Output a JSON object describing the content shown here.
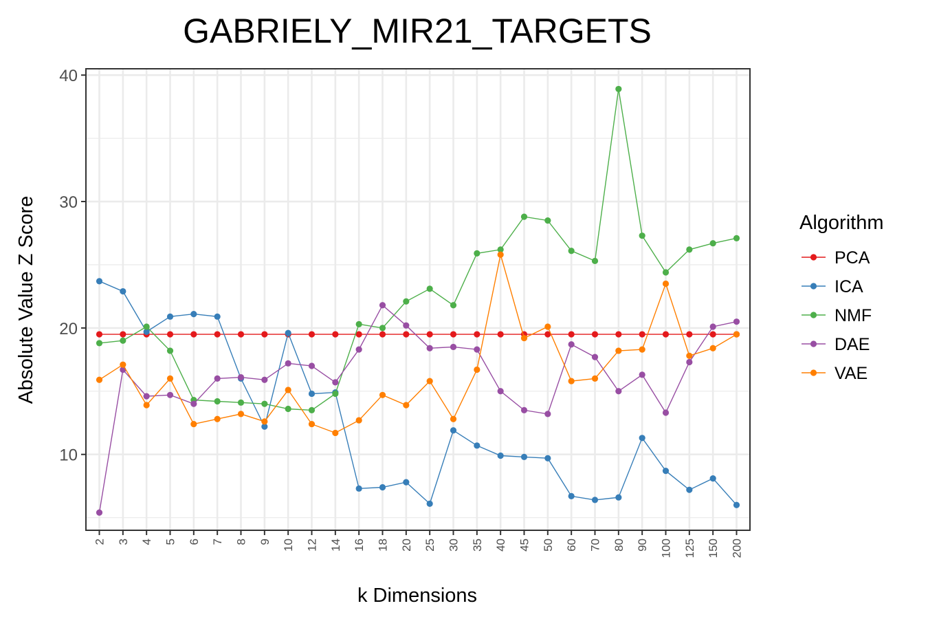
{
  "chart_data": {
    "type": "line",
    "title": "GABRIELY_MIR21_TARGETS",
    "xlabel": "k Dimensions",
    "ylabel": "Absolute Value Z Score",
    "ylim": [
      4,
      40.5
    ],
    "yticks": [
      "10",
      "20",
      "30",
      "40"
    ],
    "grid": true,
    "legend_position": "right",
    "legend_title": "Algorithm",
    "categories": [
      "2",
      "3",
      "4",
      "5",
      "6",
      "7",
      "8",
      "9",
      "10",
      "12",
      "14",
      "16",
      "18",
      "20",
      "25",
      "30",
      "35",
      "40",
      "45",
      "50",
      "60",
      "70",
      "80",
      "90",
      "100",
      "125",
      "150",
      "200"
    ],
    "series": [
      {
        "name": "PCA",
        "color": "#E41A1C",
        "values": [
          19.5,
          19.5,
          19.5,
          19.5,
          19.5,
          19.5,
          19.5,
          19.5,
          19.5,
          19.5,
          19.5,
          19.5,
          19.5,
          19.5,
          19.5,
          19.5,
          19.5,
          19.5,
          19.5,
          19.5,
          19.5,
          19.5,
          19.5,
          19.5,
          19.5,
          19.5,
          19.5,
          19.5
        ]
      },
      {
        "name": "ICA",
        "color": "#377EB8",
        "values": [
          23.7,
          22.9,
          19.7,
          20.9,
          21.1,
          20.9,
          16.0,
          12.2,
          19.6,
          14.8,
          14.9,
          7.3,
          7.4,
          7.8,
          6.1,
          11.9,
          10.7,
          9.9,
          9.8,
          9.7,
          6.7,
          6.4,
          6.6,
          11.3,
          8.7,
          7.2,
          8.1,
          6.0
        ]
      },
      {
        "name": "NMF",
        "color": "#4DAF4A",
        "values": [
          18.8,
          19.0,
          20.1,
          18.2,
          14.3,
          14.2,
          14.1,
          14.0,
          13.6,
          13.5,
          14.8,
          20.3,
          20.0,
          22.1,
          23.1,
          21.8,
          25.9,
          26.2,
          28.8,
          28.5,
          26.1,
          25.3,
          38.9,
          27.3,
          24.4,
          26.2,
          26.7,
          27.1
        ]
      },
      {
        "name": "DAE",
        "color": "#984EA3",
        "values": [
          5.4,
          16.7,
          14.6,
          14.7,
          14.0,
          16.0,
          16.1,
          15.9,
          17.2,
          17.0,
          15.7,
          18.3,
          21.8,
          20.2,
          18.4,
          18.5,
          18.3,
          15.0,
          13.5,
          13.2,
          18.7,
          17.7,
          15.0,
          16.3,
          13.3,
          17.3,
          20.1,
          20.5
        ]
      },
      {
        "name": "VAE",
        "color": "#FF7F00",
        "values": [
          15.9,
          17.1,
          13.9,
          16.0,
          12.4,
          12.8,
          13.2,
          12.6,
          15.1,
          12.4,
          11.7,
          12.7,
          14.7,
          13.9,
          15.8,
          12.8,
          16.7,
          25.8,
          19.2,
          20.1,
          15.8,
          16.0,
          18.2,
          18.3,
          23.5,
          17.8,
          18.4,
          19.5
        ]
      }
    ]
  }
}
